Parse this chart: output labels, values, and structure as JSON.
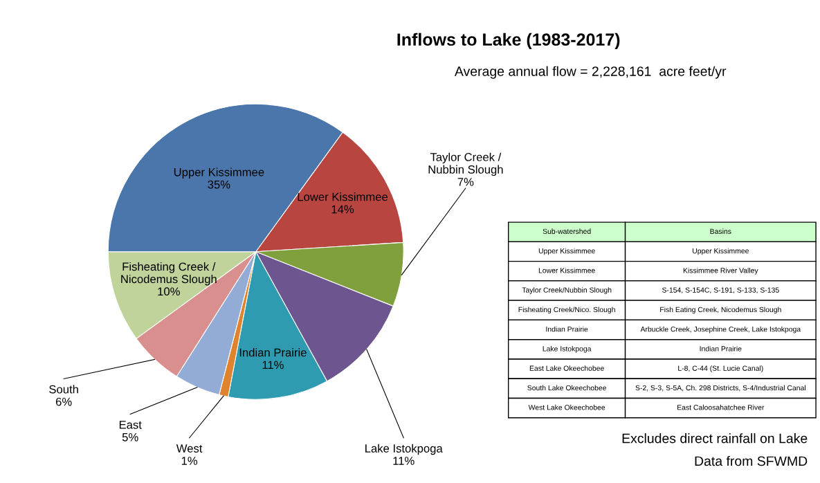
{
  "chart_data": [
    {
      "type": "pie",
      "title": "Inflows to Lake (1983-2017)",
      "subtitle": "Average annual flow = 2,228,161  acre feet/yr",
      "categories": [
        "Lower Kissimmee",
        "Taylor Creek /\nNubbin Slough",
        "Lake Istokpoga",
        "Indian Prairie",
        "West",
        "East",
        "South",
        "Fisheating Creek /\nNicodemus Slough",
        "Upper Kissimmee"
      ],
      "values": [
        14,
        7,
        11,
        11,
        1,
        5,
        6,
        10,
        35
      ],
      "value_labels": [
        "14%",
        "7%",
        "11%",
        "11%",
        "1%",
        "5%",
        "6%",
        "10%",
        "35%"
      ],
      "colors": [
        "#b84540",
        "#7fa03c",
        "#6d558f",
        "#2f9bb0",
        "#e0832e",
        "#93acd6",
        "#d98f8d",
        "#bfd39a",
        "#4a76ab"
      ],
      "annotations": [
        "Excludes direct rainfall on Lake",
        "Data from SFWMD"
      ]
    },
    {
      "type": "other",
      "categories": [
        "Sub-watershed",
        "Basins"
      ],
      "annotations": [
        "Upper Kissimmee",
        "Upper Kissimmee",
        "Lower Kissimmee",
        "Kissimmee River Valley",
        "Taylor Creek/Nubbin Slough",
        "S-154, S-154C, S-191, S-133, S-135",
        "Fisheating Creek/Nico. Slough",
        "Fish Eating Creek, Nicodemus Slough",
        "Indian Prairie",
        "Arbuckle Creek, Josephine Creek, Lake Istokpoga",
        "Lake Istokpoga",
        "Indian Prairie",
        "East Lake Okeechobee",
        "L-8, C-44 (St. Lucie Canal)",
        "South Lake Okeechobee",
        "S-2, S-3, S-5A, Ch. 298 Districts, S-4/Industrial Canal",
        "West Lake Okeechobee",
        "East Caloosahatchee River"
      ]
    }
  ]
}
